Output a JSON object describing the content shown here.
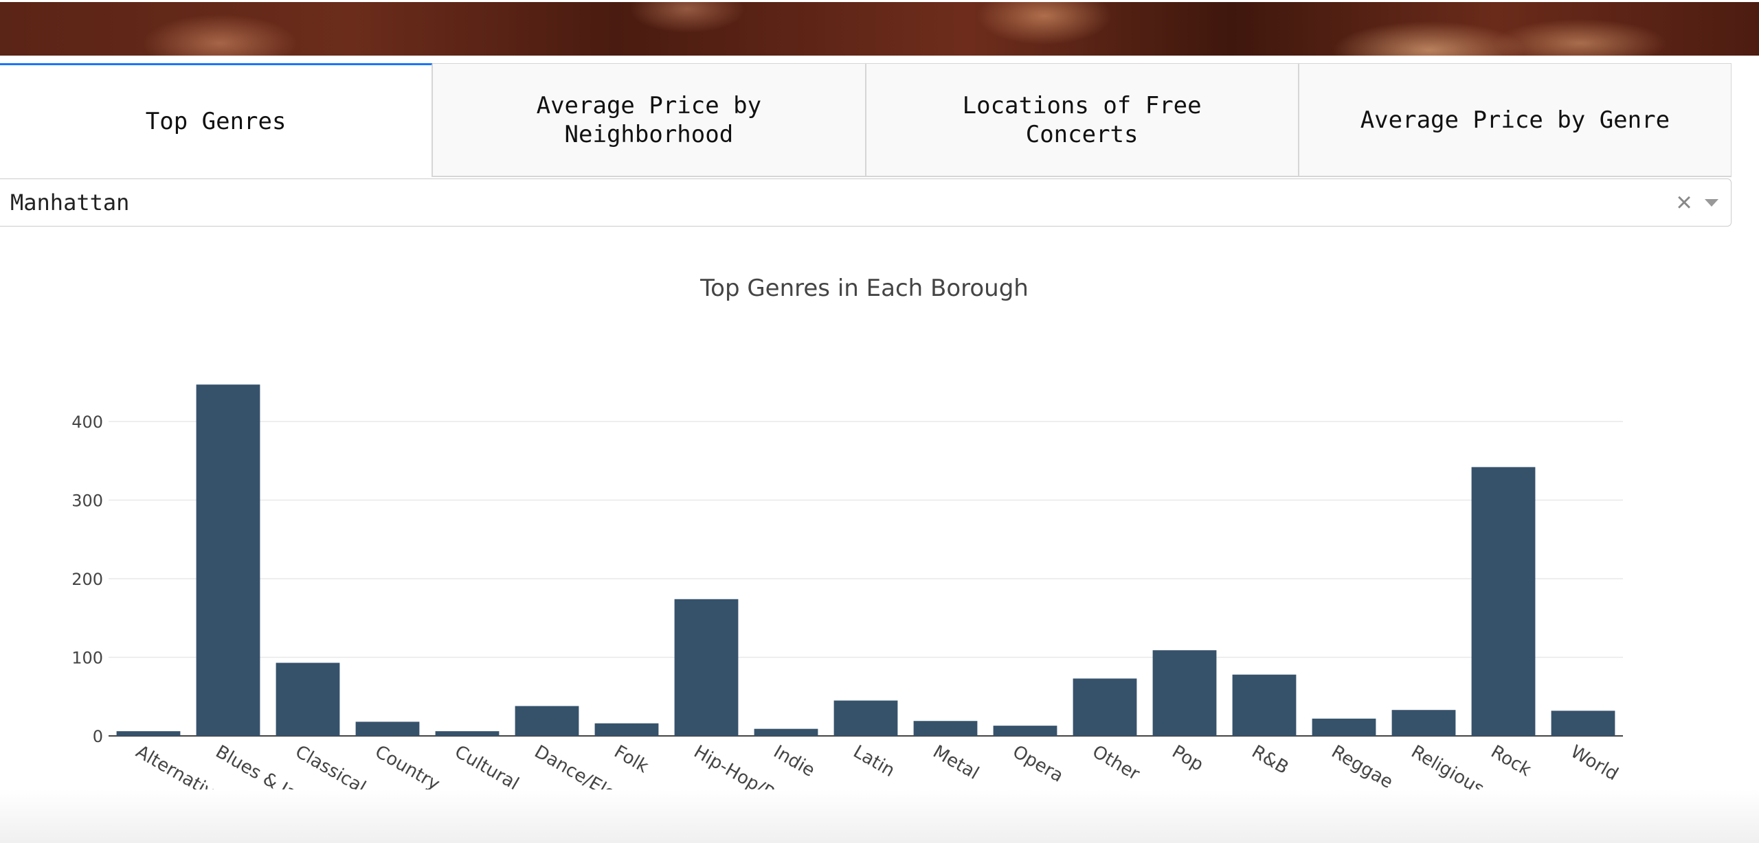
{
  "tabs": [
    {
      "label": "Top Genres",
      "active": true
    },
    {
      "label": "Average Price by Neighborhood",
      "active": false
    },
    {
      "label": "Locations of Free Concerts",
      "active": false
    },
    {
      "label": "Average Price by Genre",
      "active": false
    }
  ],
  "dropdown": {
    "value": "Manhattan",
    "clear_icon": "×"
  },
  "colors": {
    "bar": "#36526b",
    "active_tab_accent": "#1975fa"
  },
  "chart_data": {
    "type": "bar",
    "title": "Top Genres in Each Borough",
    "xlabel": "",
    "ylabel": "",
    "categories": [
      "Alternative",
      "Blues & Jazz",
      "Classical",
      "Country",
      "Cultural",
      "Dance/Electronic",
      "Folk",
      "Hip-Hop/Rap",
      "Indie",
      "Latin",
      "Metal",
      "Opera",
      "Other",
      "Pop",
      "R&B",
      "Reggae",
      "Religious",
      "Rock",
      "World"
    ],
    "values": [
      6,
      447,
      93,
      18,
      6,
      38,
      16,
      174,
      9,
      45,
      19,
      13,
      73,
      109,
      78,
      22,
      33,
      342,
      32
    ],
    "yticks": [
      0,
      100,
      200,
      300,
      400
    ],
    "ylim": [
      0,
      470
    ],
    "grid": true
  }
}
